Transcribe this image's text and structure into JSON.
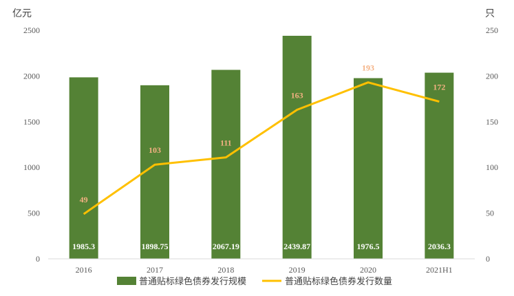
{
  "chart_data": {
    "type": "bar",
    "categories": [
      "2016",
      "2017",
      "2018",
      "2019",
      "2020",
      "2021H1"
    ],
    "series": [
      {
        "name": "普通贴标绿色债券发行规模",
        "type": "bar",
        "axis": "left",
        "color": "#548235",
        "values": [
          1985.3,
          1898.75,
          2067.19,
          2439.87,
          1976.5,
          2036.3
        ]
      },
      {
        "name": "普通贴标绿色债券发行数量",
        "type": "line",
        "axis": "right",
        "color": "#FFC000",
        "label_color": "#F4B183",
        "values": [
          49,
          103,
          111,
          163,
          193,
          172
        ]
      }
    ],
    "y_left": {
      "unit": "亿元",
      "ylim": [
        0,
        2500
      ],
      "ticks": [
        "0",
        "500",
        "1000",
        "1500",
        "2000",
        "2500"
      ]
    },
    "y_right": {
      "unit": "只",
      "ylim": [
        0,
        250
      ],
      "ticks": [
        "0",
        "50",
        "100",
        "150",
        "200",
        "250"
      ]
    },
    "bar_labels": [
      "1985.3",
      "1898.75",
      "2067.19",
      "2439.87",
      "1976.5",
      "2036.3"
    ],
    "line_labels": [
      "49",
      "103",
      "111",
      "163",
      "193",
      "172"
    ],
    "legend_position": "bottom",
    "grid": false
  }
}
